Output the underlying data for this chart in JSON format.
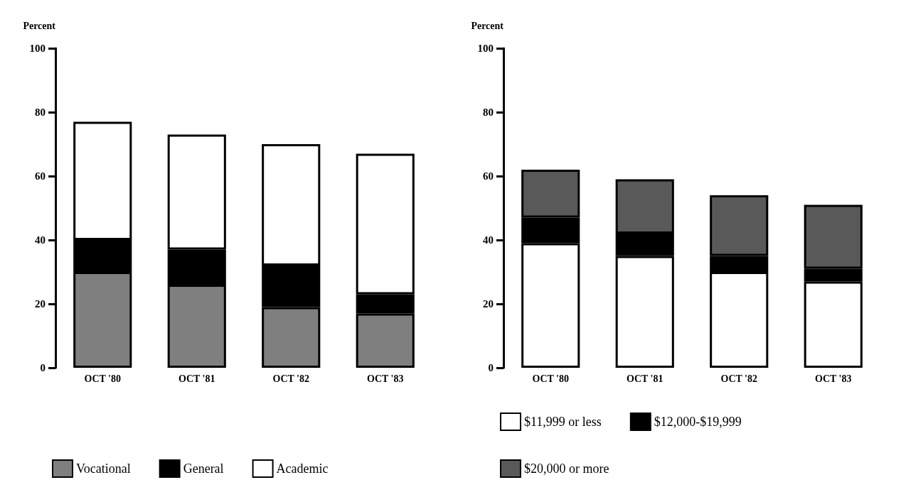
{
  "chart_data": [
    {
      "type": "bar",
      "ylabel": "Percent",
      "categories": [
        "OCT '80",
        "OCT '81",
        "OCT '82",
        "OCT '83"
      ],
      "stacked": true,
      "ylim": [
        0,
        100
      ],
      "yticks": [
        0,
        20,
        40,
        60,
        80,
        100
      ],
      "grid": false,
      "legend": "bottom",
      "series": [
        {
          "name": "Vocational",
          "color": "#7f7f7f",
          "values": [
            30,
            26,
            19,
            17
          ]
        },
        {
          "name": "General",
          "color": "#000000",
          "values": [
            10,
            11,
            13,
            6
          ]
        },
        {
          "name": "Academic",
          "color": "#ffffff",
          "values": [
            37,
            36,
            38,
            44
          ]
        }
      ]
    },
    {
      "type": "bar",
      "ylabel": "Percent",
      "categories": [
        "OCT '80",
        "OCT '81",
        "OCT '82",
        "OCT '83"
      ],
      "stacked": true,
      "ylim": [
        0,
        100
      ],
      "yticks": [
        0,
        20,
        40,
        60,
        80,
        100
      ],
      "grid": false,
      "legend": "bottom",
      "series": [
        {
          "name": "$11,999 or less",
          "color": "#ffffff",
          "values": [
            39,
            35,
            30,
            27
          ]
        },
        {
          "name": "$12,000-$19,999",
          "color": "#000000",
          "values": [
            8,
            7,
            5,
            4
          ]
        },
        {
          "name": "$20,000 or more",
          "color": "#595959",
          "values": [
            15,
            17,
            19,
            20
          ]
        }
      ]
    }
  ]
}
